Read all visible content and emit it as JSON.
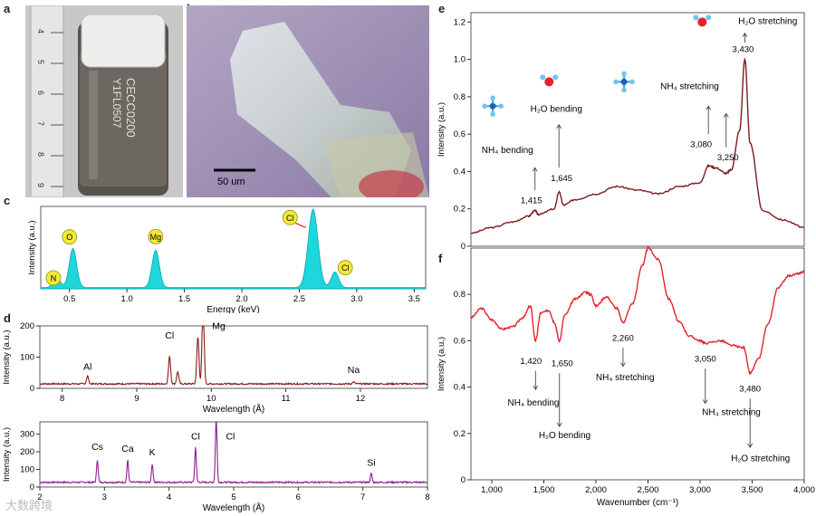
{
  "panel_labels": {
    "a": "a",
    "b": "b",
    "c": "c",
    "d": "d",
    "e": "e",
    "f": "f"
  },
  "panel_a": {
    "ruler_ticks": [
      "4",
      "5",
      "6",
      "7",
      "8",
      "9"
    ],
    "vial_label_line1": "CECC0200",
    "vial_label_line2": "Y1FL0507"
  },
  "panel_b": {
    "scale_bar": "50 um"
  },
  "watermark": "大数跨境",
  "chart_data": [
    {
      "id": "c",
      "type": "area",
      "xlabel": "Energy (keV)",
      "ylabel": "Intensity (a.u.)",
      "xlim": [
        0.25,
        3.6
      ],
      "ylim": [
        0,
        1.05
      ],
      "xticks": [
        "0.5",
        "1.0",
        "1.5",
        "2.0",
        "2.5",
        "3.0",
        "3.5"
      ],
      "peaks": [
        {
          "label": "N",
          "x": 0.39,
          "h": 0.12
        },
        {
          "label": "O",
          "x": 0.53,
          "h": 0.5
        },
        {
          "label": "Mg",
          "x": 1.25,
          "h": 0.48
        },
        {
          "label": "Cl",
          "x": 2.62,
          "h": 1.0
        },
        {
          "label": "Cl",
          "x": 2.81,
          "h": 0.2
        }
      ],
      "color": "#1fd6dc"
    },
    {
      "id": "d-top",
      "type": "line",
      "xlabel": "Wavelength (Å)",
      "ylabel": "Intensity (a.u.)",
      "xlim": [
        7.7,
        12.9
      ],
      "ylim": [
        0,
        200
      ],
      "xticks": [
        "8",
        "9",
        "10",
        "11",
        "12"
      ],
      "yticks": [
        "0",
        "100",
        "200"
      ],
      "peaks": [
        {
          "label": "Al",
          "x": 8.34,
          "h": 25
        },
        {
          "label": "Cl",
          "x": 9.44,
          "h": 88
        },
        {
          "label": "",
          "x": 9.55,
          "h": 38
        },
        {
          "label": "Mg",
          "x": 9.89,
          "h": 260
        },
        {
          "label": "",
          "x": 9.82,
          "h": 150
        },
        {
          "label": "Na",
          "x": 11.91,
          "h": 6
        }
      ],
      "color": "#8b1a1a"
    },
    {
      "id": "d-bottom",
      "type": "line",
      "xlabel": "Wavelength (Å)",
      "ylabel": "Intensity (a.u.)",
      "xlim": [
        2,
        8
      ],
      "ylim": [
        0,
        370
      ],
      "xticks": [
        "2",
        "3",
        "4",
        "5",
        "6",
        "7",
        "8"
      ],
      "yticks": [
        "0",
        "100",
        "200",
        "300"
      ],
      "peaks": [
        {
          "label": "Cs",
          "x": 2.89,
          "h": 130
        },
        {
          "label": "Ca",
          "x": 3.36,
          "h": 125
        },
        {
          "label": "K",
          "x": 3.74,
          "h": 105
        },
        {
          "label": "Cl",
          "x": 4.41,
          "h": 200
        },
        {
          "label": "Cl",
          "x": 4.73,
          "h": 370
        },
        {
          "label": "Si",
          "x": 7.13,
          "h": 50
        }
      ],
      "color": "#8e1f93"
    },
    {
      "id": "e",
      "type": "line",
      "xlabel": "",
      "ylabel": "Intensity (a.u.)",
      "xlim": [
        800,
        4000
      ],
      "ylim": [
        0,
        1.25
      ],
      "yticks": [
        "0",
        "0.2",
        "0.4",
        "0.6",
        "0.8",
        "1.0",
        "1.2"
      ],
      "x": [
        800,
        1000,
        1200,
        1350,
        1415,
        1450,
        1600,
        1645,
        1690,
        1800,
        2000,
        2200,
        2400,
        2600,
        2800,
        3000,
        3080,
        3150,
        3250,
        3300,
        3380,
        3430,
        3480,
        3600,
        3800,
        4000
      ],
      "y": [
        0.07,
        0.1,
        0.13,
        0.16,
        0.19,
        0.17,
        0.2,
        0.29,
        0.22,
        0.25,
        0.28,
        0.32,
        0.3,
        0.28,
        0.32,
        0.34,
        0.43,
        0.42,
        0.39,
        0.41,
        0.62,
        1.0,
        0.55,
        0.19,
        0.14,
        0.1
      ],
      "annotations": [
        {
          "text": "1,415",
          "x": 1415
        },
        {
          "text": "1,645",
          "x": 1645
        },
        {
          "text": "3,080",
          "x": 3080
        },
        {
          "text": "3,250",
          "x": 3250
        },
        {
          "text": "3,430",
          "x": 3430
        }
      ],
      "labels": {
        "nh4_bending": "NH₄ bending",
        "h2o_bending": "H₂O bending",
        "nh4_stretching": "NH₄ stretching",
        "h2o_stretching": "H₂O stretching"
      },
      "color": "#7a1d1d"
    },
    {
      "id": "f",
      "type": "line",
      "xlabel": "Wavenumber (cm⁻¹)",
      "ylabel": "Intensity (a.u.)",
      "xlim": [
        800,
        4000
      ],
      "ylim": [
        0,
        1.0
      ],
      "xticks": [
        "1,000",
        "1,500",
        "2,000",
        "2,500",
        "3,000",
        "3,500",
        "4,000"
      ],
      "yticks": [
        "0",
        "0.2",
        "0.4",
        "0.6",
        "0.8"
      ],
      "x": [
        800,
        900,
        1000,
        1100,
        1200,
        1300,
        1370,
        1420,
        1470,
        1550,
        1600,
        1650,
        1700,
        1800,
        1900,
        1950,
        2000,
        2100,
        2200,
        2260,
        2350,
        2450,
        2500,
        2600,
        2700,
        2800,
        2900,
        3000,
        3050,
        3200,
        3300,
        3420,
        3480,
        3560,
        3650,
        3750,
        3850,
        3950,
        4000
      ],
      "y": [
        0.7,
        0.74,
        0.69,
        0.65,
        0.66,
        0.7,
        0.75,
        0.6,
        0.72,
        0.73,
        0.68,
        0.6,
        0.71,
        0.78,
        0.81,
        0.8,
        0.75,
        0.79,
        0.74,
        0.68,
        0.76,
        0.93,
        1.0,
        0.95,
        0.78,
        0.68,
        0.62,
        0.6,
        0.59,
        0.6,
        0.58,
        0.57,
        0.46,
        0.52,
        0.67,
        0.83,
        0.88,
        0.89,
        0.9
      ],
      "annotations": [
        {
          "text": "1,420",
          "x": 1420
        },
        {
          "text": "1,650",
          "x": 1650
        },
        {
          "text": "2,260",
          "x": 2260
        },
        {
          "text": "3,050",
          "x": 3050
        },
        {
          "text": "3,480",
          "x": 3480
        }
      ],
      "labels": {
        "nh4_bending": "NH₄ bending",
        "h2o_bending": "H₂O bending",
        "nh4_stretching_1": "NH₄ stretching",
        "nh4_stretching_2": "NH₄ stretching",
        "h2o_stretching": "H₂O stretching"
      },
      "color": "#e3242b"
    }
  ]
}
